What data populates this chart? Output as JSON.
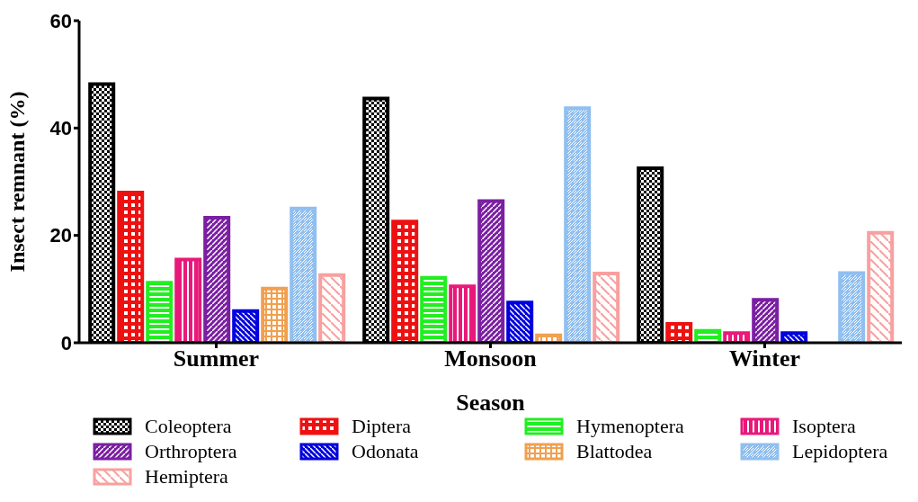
{
  "chart_data": {
    "type": "bar",
    "xlabel": "Season",
    "ylabel": "Insect remnant (%)",
    "categories": [
      "Summer",
      "Monsoon",
      "Winter"
    ],
    "ylim": [
      0,
      60
    ],
    "yticks": [
      0,
      20,
      40,
      60
    ],
    "grid": false,
    "legend": "bottom",
    "series": [
      {
        "name": "Coleoptera",
        "color": "#000000",
        "values": [
          48.2,
          45.5,
          32.5
        ]
      },
      {
        "name": "Diptera",
        "color": "#ee1111",
        "values": [
          28,
          22.6,
          3.5
        ]
      },
      {
        "name": "Hymenoptera",
        "color": "#22ee22",
        "values": [
          11.2,
          12.1,
          2.2
        ]
      },
      {
        "name": "Isoptera",
        "color": "#e8197a",
        "values": [
          15.5,
          10.5,
          1.8
        ]
      },
      {
        "name": "Orthroptera",
        "color": "#7b1fa2",
        "values": [
          23.3,
          26.4,
          8
        ]
      },
      {
        "name": "Odonata",
        "color": "#0000dd",
        "values": [
          5.9,
          7.5,
          1.8
        ]
      },
      {
        "name": "Blattodea",
        "color": "#f0a050",
        "values": [
          10.1,
          1.4,
          0
        ]
      },
      {
        "name": "Lepidoptera",
        "color": "#90bff0",
        "values": [
          25,
          43.7,
          13
        ]
      },
      {
        "name": "Hemiptera",
        "color": "#f8a0a0",
        "values": [
          12.6,
          12.9,
          20.5
        ]
      }
    ]
  }
}
